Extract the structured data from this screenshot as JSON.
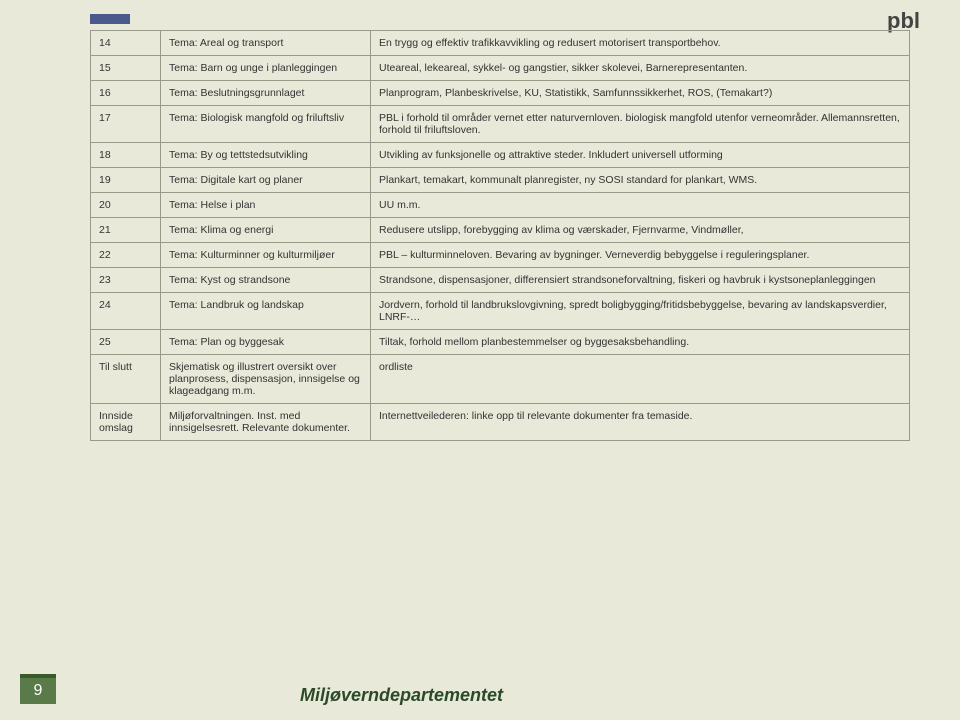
{
  "brand": "pbl",
  "pageNumber": "9",
  "department": "Miljøverndepartementet",
  "rows": [
    {
      "c1": "14",
      "c2": "Tema: Areal og transport",
      "c3": "En trygg og\neffektiv trafikkavvikling og redusert motorisert transportbehov."
    },
    {
      "c1": "15",
      "c2": "Tema: Barn og unge i planleggingen",
      "c3": "Uteareal, lekeareal, sykkel- og gangstier, sikker skolevei, Barnerepresentanten."
    },
    {
      "c1": "16",
      "c2": "Tema: Beslutningsgrunnlaget",
      "c3": "Planprogram, Planbeskrivelse, KU, Statistikk, Samfunnssikkerhet, ROS, (Temakart?)"
    },
    {
      "c1": "17",
      "c2": "Tema: Biologisk mangfold og friluftsliv",
      "c3": "PBL i forhold til områder vernet etter naturvernloven. biologisk mangfold utenfor verneområder. Allemannsretten, forhold til friluftsloven."
    },
    {
      "c1": "18",
      "c2": "Tema: By og tettstedsutvikling",
      "c3": "Utvikling av funksjonelle og attraktive steder. Inkludert universell utforming"
    },
    {
      "c1": "19",
      "c2": "Tema: Digitale kart og planer",
      "c3": "Plankart, temakart, kommunalt planregister, ny SOSI standard for plankart, WMS."
    },
    {
      "c1": "20",
      "c2": "Tema: Helse i plan",
      "c3": "UU m.m."
    },
    {
      "c1": "21",
      "c2": "Tema: Klima og energi",
      "c3": "Redusere utslipp, forebygging av klima og værskader, Fjernvarme, Vindmøller,"
    },
    {
      "c1": "22",
      "c2": "Tema: Kulturminner og kulturmiljøer",
      "c3": "PBL – kulturminneloven. Bevaring av bygninger. Verneverdig bebyggelse i reguleringsplaner."
    },
    {
      "c1": "23",
      "c2": "Tema: Kyst og strandsone",
      "c3": "Strandsone, dispensasjoner, differensiert strandsoneforvaltning, fiskeri og havbruk i kystsoneplanleggingen"
    },
    {
      "c1": "24",
      "c2": "Tema: Landbruk og landskap",
      "c3": "Jordvern, forhold til landbrukslovgivning, spredt boligbygging/fritidsbebyggelse, bevaring av landskapsverdier, LNRF-…"
    },
    {
      "c1": "25",
      "c2": "Tema: Plan og byggesak",
      "c3": "Tiltak, forhold mellom planbestemmelser og byggesaksbehandling."
    },
    {
      "c1": "Til slutt",
      "c2": "Skjematisk og illustrert oversikt over planprosess, dispensasjon, innsigelse og klageadgang m.m.",
      "c3": "ordliste"
    },
    {
      "c1": "Innside omslag",
      "c2": "Miljøforvaltningen.\nInst. med innsigelsesrett.\nRelevante dokumenter.",
      "c3": "Internettveilederen: linke opp til relevante dokumenter fra temaside."
    }
  ]
}
